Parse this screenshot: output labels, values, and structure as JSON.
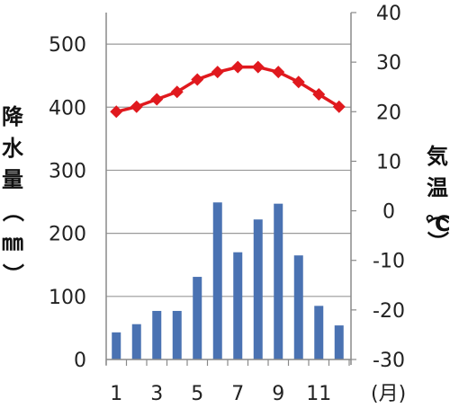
{
  "chart_data": {
    "type": "bar+line",
    "x": [
      1,
      2,
      3,
      4,
      5,
      6,
      7,
      8,
      9,
      10,
      11,
      12
    ],
    "x_tick_labels": [
      "1",
      "3",
      "5",
      "7",
      "9",
      "11"
    ],
    "x_unit": "(月)",
    "left_axis": {
      "label_chars": [
        "降",
        "水",
        "量",
        "（",
        "㎜",
        "）"
      ],
      "ylim": [
        0,
        550
      ],
      "ticks": [
        0,
        100,
        200,
        300,
        400,
        500
      ]
    },
    "right_axis": {
      "label_chars": [
        "気",
        "温",
        "（",
        "℃",
        "）"
      ],
      "ylim": [
        -30,
        40
      ],
      "ticks": [
        40,
        30,
        20,
        10,
        0,
        -10,
        -20,
        -30
      ]
    },
    "series": [
      {
        "kind": "bar",
        "axis": "left",
        "color": "#4a72b2",
        "values": [
          43,
          56,
          77,
          77,
          131,
          249,
          170,
          222,
          247,
          165,
          85,
          54
        ]
      },
      {
        "kind": "line",
        "axis": "right",
        "color": "#e0191e",
        "marker": "diamond",
        "values": [
          20,
          21,
          22.5,
          24,
          26.5,
          28,
          29,
          29,
          28,
          26,
          23.5,
          21
        ]
      }
    ],
    "grid": true
  }
}
